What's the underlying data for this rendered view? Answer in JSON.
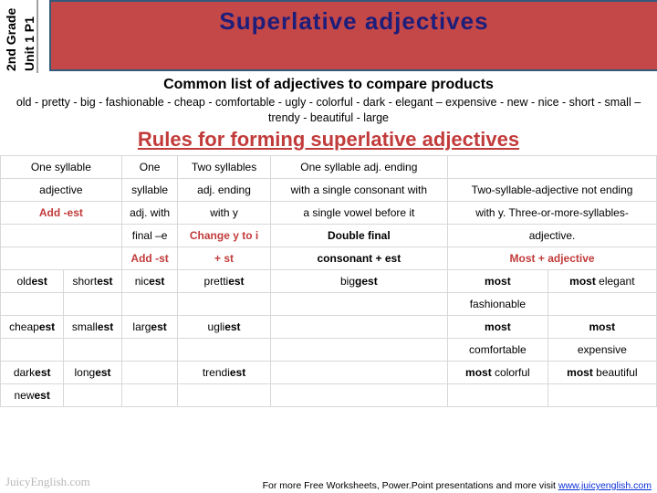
{
  "header": {
    "grade": "2nd Grade",
    "unit": "Unit 1 P1",
    "title": "Superlative adjectives"
  },
  "sub1": "Common list of adjectives to compare products",
  "adjlist": "old - pretty - big - fashionable - cheap - comfortable - ugly - colorful - dark - elegant – expensive - new - nice - short - small – trendy - beautiful - large",
  "rulehead": "Rules for forming superlative adjectives",
  "tab": {
    "r0": [
      "One syllable",
      "One",
      "Two syllables",
      "One syllable adj. ending",
      "",
      ""
    ],
    "r1": [
      "adjective",
      "syllable",
      "adj. ending",
      "with a single consonant with",
      "Two-syllable-adjective not ending",
      ""
    ],
    "r2": [
      "Add -est",
      "adj. with",
      "with y",
      "a single vowel before it",
      "with y. Three-or-more-syllables-",
      ""
    ],
    "r3": [
      "",
      "final –e",
      "Change y to i",
      "Double final",
      "adjective.",
      ""
    ],
    "r4": [
      "",
      "Add -st",
      "+ st",
      "consonant + est",
      "Most + adjective",
      ""
    ],
    "ex": {
      "r5": [
        "oldest",
        "shortest",
        "nicest",
        "prettiest",
        "biggest",
        "most",
        "most elegant"
      ],
      "r6": [
        "",
        "",
        "",
        "",
        "",
        "fashionable",
        ""
      ],
      "r7": [
        "cheapest",
        "smallest",
        "largest",
        "ugliest",
        "",
        "most",
        "most"
      ],
      "r8": [
        "",
        "",
        "",
        "",
        "",
        "comfortable",
        "expensive"
      ],
      "r9": [
        "darkest",
        "longest",
        "",
        "trendiest",
        "",
        "most colorful",
        "most beautiful"
      ],
      "r10": [
        "newest",
        "",
        "",
        "",
        "",
        "",
        ""
      ]
    }
  },
  "footer": {
    "pre": "For more Free Worksheets, Power.Point presentations and more visit ",
    "link": "www.juicyenglish.com"
  },
  "watermark": "JuicyEnglish.com",
  "colors": {
    "red": "#c44848",
    "border": "#34597a",
    "rule": "#c23b3b",
    "link": "#0a2ed6"
  }
}
